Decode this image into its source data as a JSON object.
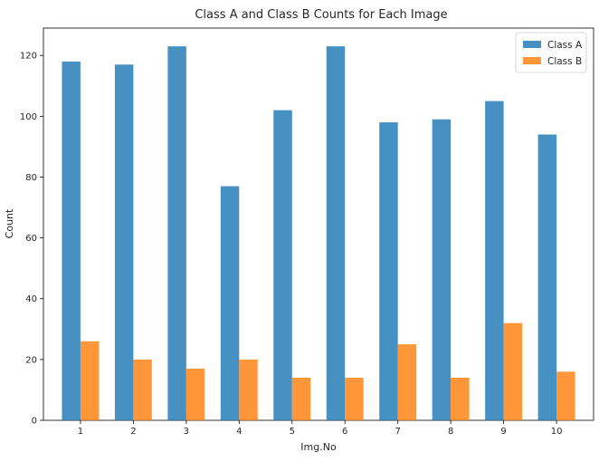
{
  "chart_data": {
    "type": "bar",
    "title": "Class A and Class B Counts for Each Image",
    "xlabel": "Img.No",
    "ylabel": "Count",
    "categories": [
      "1",
      "2",
      "3",
      "4",
      "5",
      "6",
      "7",
      "8",
      "9",
      "10"
    ],
    "series": [
      {
        "name": "Class A",
        "color": "#1f77b4",
        "values": [
          118,
          117,
          123,
          77,
          102,
          123,
          98,
          99,
          105,
          94
        ]
      },
      {
        "name": "Class B",
        "color": "#ff7f0e",
        "values": [
          26,
          20,
          17,
          20,
          14,
          14,
          25,
          14,
          32,
          16
        ]
      }
    ],
    "ylim": [
      0,
      129
    ],
    "yticks": [
      0,
      20,
      40,
      60,
      80,
      100,
      120
    ],
    "grid": false,
    "legend": "top-right"
  }
}
